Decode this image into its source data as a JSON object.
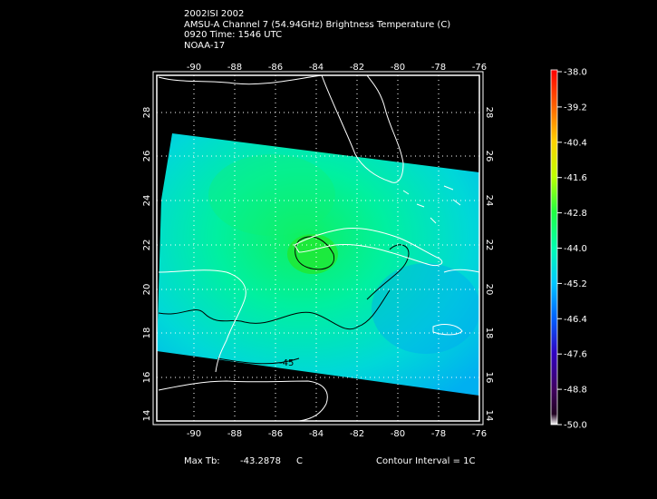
{
  "header": {
    "line1": "2002ISI 2002",
    "line2": "AMSU-A Channel 7 (54.94GHz) Brightness Temperature (C)",
    "line3": "0920 Time: 1546 UTC",
    "line4": "NOAA-17"
  },
  "map": {
    "lon_range": [
      -92,
      -76
    ],
    "lat_range": [
      13.8,
      29.5
    ],
    "lon_ticks": [
      "-90",
      "-88",
      "-86",
      "-84",
      "-82",
      "-80",
      "-78",
      "-76"
    ],
    "lat_ticks": [
      "14",
      "16",
      "18",
      "20",
      "22",
      "24",
      "26",
      "28"
    ],
    "grid": "dotted",
    "contour_label": "-45"
  },
  "colorbar": {
    "min": -50.0,
    "max": -38.0,
    "ticks": [
      "-38.0",
      "-39.2",
      "-40.4",
      "-41.6",
      "-42.8",
      "-44.0",
      "-45.2",
      "-46.4",
      "-47.6",
      "-48.8",
      "-50.0"
    ],
    "colors": [
      "#ff0000",
      "#ff8000",
      "#ffff00",
      "#80ff00",
      "#00ff40",
      "#00ffc0",
      "#00c0ff",
      "#0040ff",
      "#4000c0",
      "#400040",
      "#ffffff"
    ]
  },
  "footer": {
    "max_label": "Max Tb:",
    "max_value": "-43.2878",
    "max_unit": "C",
    "contour_interval": "Contour Interval = 1C"
  }
}
